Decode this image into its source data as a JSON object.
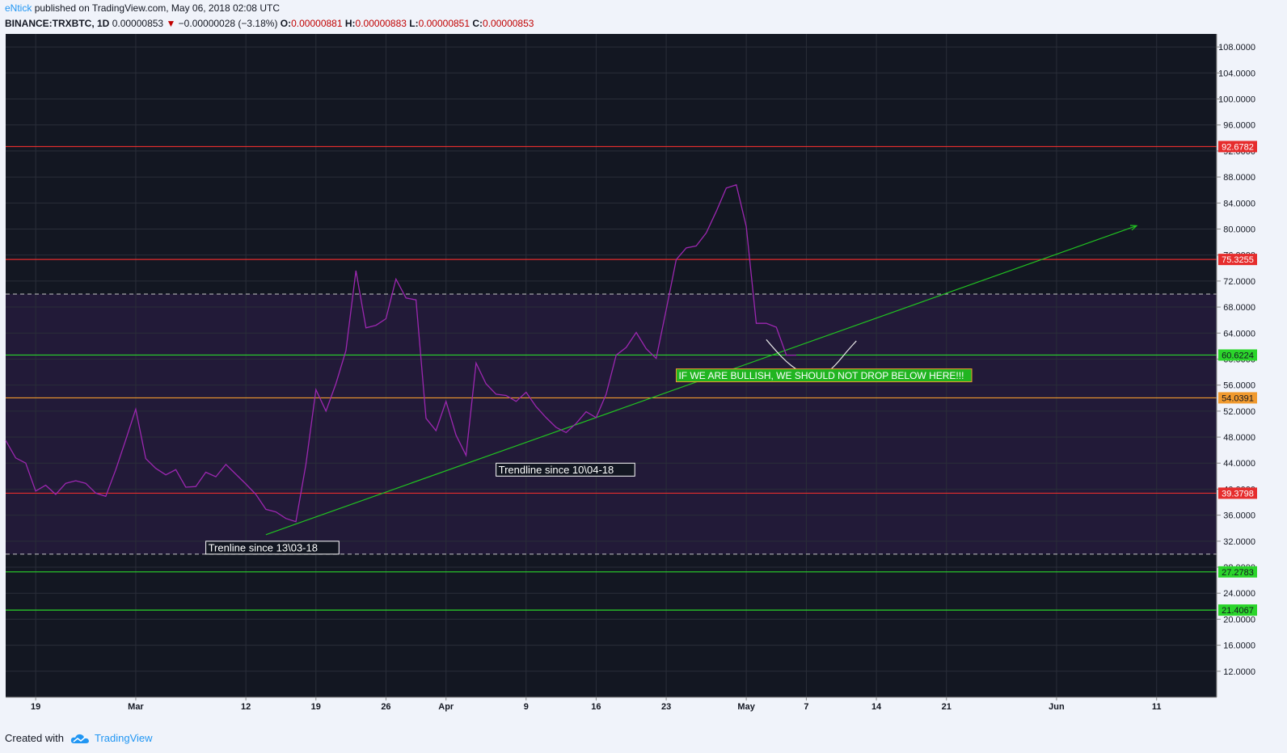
{
  "header": {
    "author": "eNtick",
    "published_text": "published on TradingView.com, May 06, 2018 02:08 UTC",
    "symbol": "BINANCE:TRXBTC, 1D",
    "last": "0.00000853",
    "change": "−0.00000028 (−3.18%)",
    "o_label": "O:",
    "o_value": "0.00000881",
    "h_label": "H:",
    "h_value": "0.00000883",
    "l_label": "L:",
    "l_value": "0.00000851",
    "c_label": "C:",
    "c_value": "0.00000853"
  },
  "footer": {
    "created_with": "Created with",
    "brand": "TradingView"
  },
  "chart_data": {
    "type": "line",
    "ylim": [
      8,
      110
    ],
    "y_ticks": [
      12,
      16,
      20,
      24,
      28,
      32,
      36,
      40,
      44,
      48,
      52,
      56,
      60,
      64,
      68,
      72,
      76,
      80,
      84,
      88,
      92,
      96,
      100,
      104,
      108
    ],
    "y_tick_labels": [
      "12.0000",
      "16.0000",
      "20.0000",
      "24.0000",
      "28.0000",
      "32.0000",
      "36.0000",
      "40.0000",
      "44.0000",
      "48.0000",
      "52.0000",
      "56.0000",
      "60.0000",
      "64.0000",
      "68.0000",
      "72.0000",
      "76.0000",
      "80.0000",
      "84.0000",
      "88.0000",
      "92.0000",
      "96.0000",
      "100.0000",
      "104.0000",
      "108.0000"
    ],
    "x_ticks": [
      "2018-02-19",
      "2018-03-01",
      "2018-03-12",
      "2018-03-19",
      "2018-03-26",
      "2018-04-01",
      "2018-04-09",
      "2018-04-16",
      "2018-04-23",
      "2018-05-01",
      "2018-05-07",
      "2018-05-14",
      "2018-05-21",
      "2018-06-01",
      "2018-06-11"
    ],
    "x_tick_labels": [
      "19",
      "Mar",
      "12",
      "19",
      "26",
      "Apr",
      "9",
      "16",
      "23",
      "May",
      "7",
      "14",
      "21",
      "Jun",
      "11"
    ],
    "x_range": [
      "2018-02-16",
      "2018-06-17"
    ],
    "colors": {
      "background": "#131722",
      "zone": "#221a38",
      "price_line": "#9c27b0",
      "trendline": "#21c321",
      "grid": "#2a2e39",
      "resistance": "#e62d2d",
      "support": "#2bd52b",
      "orange": "#f19a2e",
      "dashed": "#c8c8c8"
    },
    "series": [
      {
        "x": [
          "2018-02-16",
          "2018-02-17",
          "2018-02-18",
          "2018-02-19",
          "2018-02-20",
          "2018-02-21",
          "2018-02-22",
          "2018-02-23",
          "2018-02-24",
          "2018-02-25",
          "2018-02-26",
          "2018-02-27",
          "2018-02-28",
          "2018-03-01",
          "2018-03-02",
          "2018-03-03",
          "2018-03-04",
          "2018-03-05",
          "2018-03-06",
          "2018-03-07",
          "2018-03-08",
          "2018-03-09",
          "2018-03-10",
          "2018-03-11",
          "2018-03-12",
          "2018-03-13",
          "2018-03-14",
          "2018-03-15",
          "2018-03-16",
          "2018-03-17",
          "2018-03-18",
          "2018-03-19",
          "2018-03-20",
          "2018-03-21",
          "2018-03-22",
          "2018-03-23",
          "2018-03-24",
          "2018-03-25",
          "2018-03-26",
          "2018-03-27",
          "2018-03-28",
          "2018-03-29",
          "2018-03-30",
          "2018-03-31",
          "2018-04-01",
          "2018-04-02",
          "2018-04-03",
          "2018-04-04",
          "2018-04-05",
          "2018-04-06",
          "2018-04-07",
          "2018-04-08",
          "2018-04-09",
          "2018-04-10",
          "2018-04-11",
          "2018-04-12",
          "2018-04-13",
          "2018-04-14",
          "2018-04-15",
          "2018-04-16",
          "2018-04-17",
          "2018-04-18",
          "2018-04-19",
          "2018-04-20",
          "2018-04-21",
          "2018-04-22",
          "2018-04-23",
          "2018-04-24",
          "2018-04-25",
          "2018-04-26",
          "2018-04-27",
          "2018-04-28",
          "2018-04-29",
          "2018-04-30",
          "2018-05-01",
          "2018-05-02",
          "2018-05-03",
          "2018-05-04",
          "2018-05-05",
          "2018-05-06"
        ],
        "values": [
          47.5,
          44.8,
          44.0,
          39.7,
          40.6,
          39.2,
          40.9,
          41.3,
          40.9,
          39.4,
          38.9,
          43.0,
          47.6,
          52.3,
          44.7,
          43.2,
          42.2,
          43.0,
          40.3,
          40.4,
          42.6,
          41.9,
          43.8,
          42.3,
          40.8,
          39.2,
          36.9,
          36.5,
          35.5,
          35.0,
          43.8,
          55.3,
          52.0,
          56.2,
          61.3,
          73.6,
          64.8,
          65.2,
          66.2,
          72.3,
          69.4,
          69.1,
          50.9,
          49.0,
          53.5,
          48.3,
          45.2,
          59.4,
          56.2,
          54.6,
          54.4,
          53.5,
          54.9,
          52.7,
          51.0,
          49.5,
          48.7,
          50.1,
          51.9,
          51.0,
          54.6,
          60.6,
          61.8,
          64.1,
          61.6,
          60.1,
          67.6,
          75.3,
          77.1,
          77.4,
          79.4,
          82.7,
          86.3,
          86.8,
          80.4,
          65.5,
          65.5,
          64.9,
          60.6,
          60.6
        ]
      }
    ],
    "horizontal_lines": [
      {
        "value": 92.6782,
        "label": "92.6782",
        "color": "#e62d2d"
      },
      {
        "value": 75.3255,
        "label": "75.3255",
        "color": "#e62d2d"
      },
      {
        "value": 60.6224,
        "label": "60.6224",
        "color": "#2bd52b"
      },
      {
        "value": 54.0391,
        "label": "54.0391",
        "color": "#f19a2e"
      },
      {
        "value": 39.3798,
        "label": "39.3798",
        "color": "#e62d2d"
      },
      {
        "value": 27.2783,
        "label": "27.2783",
        "color": "#2bd52b"
      },
      {
        "value": 21.4067,
        "label": "21.4067",
        "color": "#2bd52b"
      }
    ],
    "dashed_lines": [
      70.0,
      30.0
    ],
    "shaded_zone": [
      30.0,
      70.0
    ],
    "trendline": {
      "x1": "2018-03-14",
      "y1": 33.0,
      "x2": "2018-06-09",
      "y2": 80.5
    },
    "projection_curve": [
      [
        "2018-05-03",
        63.0
      ],
      [
        "2018-05-04",
        61.2
      ],
      [
        "2018-05-05",
        59.6
      ],
      [
        "2018-05-06",
        58.4
      ],
      [
        "2018-05-07",
        57.6
      ],
      [
        "2018-05-08",
        57.3
      ],
      [
        "2018-05-09",
        57.8
      ],
      [
        "2018-05-10",
        59.2
      ],
      [
        "2018-05-11",
        61.1
      ],
      [
        "2018-05-12",
        62.8
      ]
    ],
    "annotations": [
      {
        "text": "IF WE ARE BULLISH, WE SHOULD NOT DROP BELOW HERE!!!",
        "x": "2018-04-24",
        "y": 57.5,
        "style": "green"
      },
      {
        "text": "Trendline since 10\\04-18",
        "x": "2018-04-06",
        "y": 43.0,
        "style": "white"
      },
      {
        "text": "Trenline since 13\\03-18",
        "x": "2018-03-08",
        "y": 31.0,
        "style": "white"
      }
    ]
  }
}
